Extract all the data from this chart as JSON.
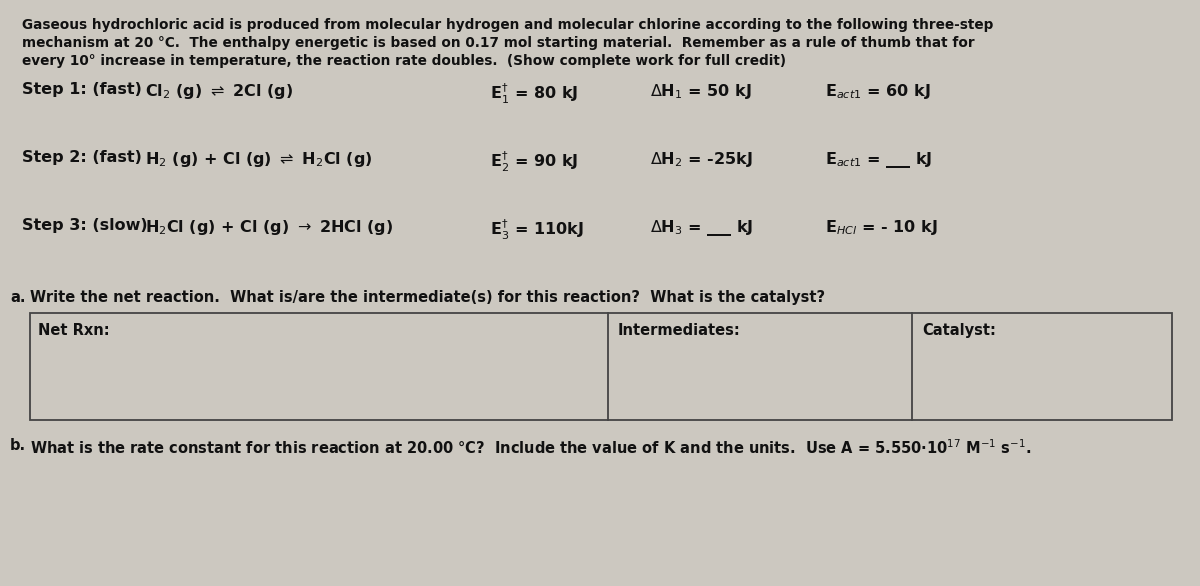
{
  "bg_color": "#ccc8c0",
  "text_color": "#111111",
  "fig_width": 12.0,
  "fig_height": 5.86,
  "intro_line1": "Gaseous hydrochloric acid is produced from molecular hydrogen and molecular chlorine according to the following three-step",
  "intro_line2": "mechanism at 20 °C.  The enthalpy energetic is based on 0.17 mol starting material.  Remember as a rule of thumb that for",
  "intro_line3": "every 10° increase in temperature, the reaction rate doubles.  (Show complete work for full credit)",
  "step1_label": "Step 1: (fast)",
  "step1_eq": "Cl$_2$ (g) $\\rightleftharpoons$ 2Cl (g)",
  "step1_ef": "E$_1^{\\dagger}$ = 80 kJ",
  "step1_dh": "$\\Delta$H$_1$ = 50 kJ",
  "step1_eact": "E$_{act1}$ = 60 kJ",
  "step2_label": "Step 2: (fast)",
  "step2_eq": "H$_2$ (g) + Cl (g) $\\rightleftharpoons$ H$_2$Cl (g)",
  "step2_ef": "E$_2^{\\dagger}$ = 90 kJ",
  "step2_dh": "$\\Delta$H$_2$ = -25kJ",
  "step2_eact": "E$_{act1}$ = ___ kJ",
  "step3_label": "Step 3: (slow)",
  "step3_eq": "H$_2$Cl (g) + Cl (g) $\\rightarrow$ 2HCl (g)",
  "step3_ef": "E$_3^{\\dagger}$ = 110kJ",
  "step3_dh": "$\\Delta$H$_3$ = ___ kJ",
  "step3_eact": "E$_{HCl}$ = - 10 kJ",
  "part_a_intro": "Write the net reaction.  What is/are the intermediate(s) for this reaction?  What is the catalyst?",
  "net_rxn_label": "Net Rxn:",
  "intermediates_label": "Intermediates:",
  "catalyst_label": "Catalyst:",
  "part_b_text": "What is the rate constant for this reaction at 20.00 °C?  Include the value of K and the units.  Use A = 5.550·10$^{17}$ M$^{-1}$ s$^{-1}$.",
  "label_a": "a.",
  "label_b": "b."
}
